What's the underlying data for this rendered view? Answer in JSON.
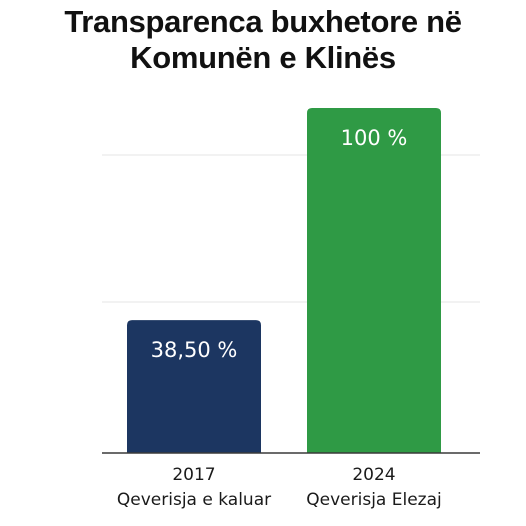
{
  "chart_data": {
    "type": "bar",
    "title_lines": [
      "Transparenca buxhetore në",
      "Komunën e Klinës"
    ],
    "categories": [
      {
        "year": "2017",
        "label": "Qeverisja e kaluar"
      },
      {
        "year": "2024",
        "label": "Qeverisja Elezaj"
      }
    ],
    "values": [
      38.5,
      100
    ],
    "value_labels": [
      "38,50 %",
      "100 %"
    ],
    "colors": [
      "#1c3661",
      "#2f9a45"
    ],
    "ylim": [
      0,
      100
    ],
    "grid": true,
    "legend": "none"
  }
}
